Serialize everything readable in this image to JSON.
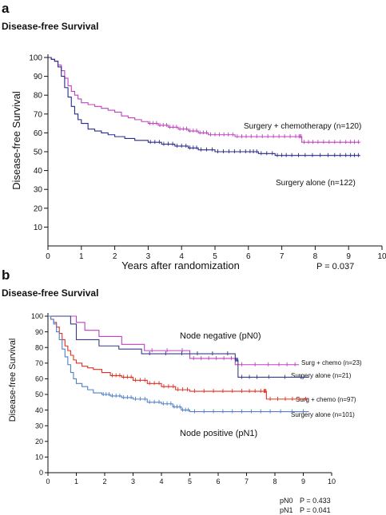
{
  "chart_data": [
    {
      "type": "line",
      "panel_label": "a",
      "title": "Disease-free Survival",
      "xlabel": "Years after randomization",
      "ylabel": "Disease-free Survival",
      "xlim": [
        0,
        10
      ],
      "ylim": [
        0,
        100
      ],
      "xticks": [
        "0",
        "1",
        "2",
        "3",
        "4",
        "5",
        "6",
        "7",
        "8",
        "9",
        "10"
      ],
      "yticks": [
        "10",
        "20",
        "30",
        "40",
        "50",
        "60",
        "70",
        "80",
        "90",
        "100"
      ],
      "annotation": "P = 0.037",
      "series": [
        {
          "name": "Surgery + chemotherapy (n=120)",
          "color": "#c040c0",
          "x": [
            0,
            0.1,
            0.2,
            0.3,
            0.4,
            0.5,
            0.6,
            0.7,
            0.8,
            0.9,
            1.0,
            1.2,
            1.4,
            1.6,
            1.8,
            2.0,
            2.2,
            2.4,
            2.6,
            2.8,
            3.0,
            3.3,
            3.6,
            3.9,
            4.2,
            4.5,
            4.8,
            5.2,
            5.6,
            6.0,
            6.5,
            7.0,
            7.5,
            7.6,
            8.0,
            8.5,
            9.0,
            9.35
          ],
          "y": [
            100,
            99,
            98,
            96,
            93,
            89,
            85,
            82,
            80,
            78,
            76,
            75,
            74,
            73,
            72,
            71,
            69,
            68,
            67,
            66,
            65,
            64,
            63,
            62,
            61,
            60,
            59,
            59,
            58,
            58,
            58,
            58,
            58,
            55,
            55,
            55,
            55,
            55
          ]
        },
        {
          "name": "Surgery alone (n=122)",
          "color": "#2a2a8a",
          "x": [
            0,
            0.1,
            0.2,
            0.3,
            0.4,
            0.5,
            0.6,
            0.7,
            0.8,
            0.9,
            1.0,
            1.2,
            1.4,
            1.6,
            1.8,
            2.0,
            2.3,
            2.6,
            3.0,
            3.4,
            3.8,
            4.2,
            4.5,
            5.0,
            5.5,
            6.0,
            6.3,
            6.8,
            7.2,
            7.8,
            8.5,
            9.0,
            9.35
          ],
          "y": [
            100,
            99,
            98,
            95,
            90,
            84,
            79,
            74,
            70,
            67,
            65,
            62,
            61,
            60,
            59,
            58,
            57,
            56,
            55,
            54,
            53,
            52,
            51,
            50,
            50,
            50,
            49,
            48,
            48,
            48,
            48,
            48,
            48
          ]
        }
      ],
      "legend": {
        "chemo_label": "Surgery + chemotherapy (n=120)",
        "alone_label": "Surgery alone (n=122)"
      }
    },
    {
      "type": "line",
      "panel_label": "b",
      "title": "Disease-free Survival",
      "ylabel": "Disease-free Survival",
      "xlim": [
        0,
        10
      ],
      "ylim": [
        0,
        100
      ],
      "xticks": [
        "0",
        "1",
        "2",
        "3",
        "4",
        "5",
        "6",
        "7",
        "8",
        "9",
        "10"
      ],
      "yticks": [
        "0",
        "10",
        "20",
        "30",
        "40",
        "50",
        "60",
        "70",
        "80",
        "90",
        "100"
      ],
      "group_labels": {
        "negative": "Node negative (pN0)",
        "positive": "Node positive (pN1)"
      },
      "annotations": [
        {
          "label": "pN0",
          "value": "P = 0.433"
        },
        {
          "label": "pN1",
          "value": "P = 0.041"
        }
      ],
      "series": [
        {
          "name": "Surg + chemo (n=23)",
          "color": "#c040c0",
          "x": [
            0,
            0.7,
            1.0,
            1.3,
            1.8,
            2.6,
            3.4,
            5.0,
            5.8,
            6.6,
            8.0,
            8.85
          ],
          "y": [
            100,
            100,
            96,
            91,
            87,
            82,
            78,
            73,
            73,
            69,
            69,
            69
          ]
        },
        {
          "name": "Surgery alone (n=21)",
          "color": "#3a3a8a",
          "x": [
            0,
            0.5,
            0.8,
            1.0,
            1.8,
            2.5,
            3.3,
            5.0,
            6.6,
            6.7,
            7.5,
            9.2
          ],
          "y": [
            100,
            100,
            95,
            85,
            81,
            79,
            76,
            76,
            72,
            61,
            61,
            61
          ]
        },
        {
          "name": "Surg + chemo (n=97)",
          "color": "#e03020",
          "x": [
            0,
            0.1,
            0.2,
            0.3,
            0.4,
            0.5,
            0.6,
            0.7,
            0.8,
            0.9,
            1.0,
            1.2,
            1.4,
            1.6,
            1.9,
            2.2,
            2.6,
            3.0,
            3.5,
            4.0,
            4.5,
            5.0,
            6.0,
            7.0,
            7.6,
            7.7,
            8.5,
            9.2
          ],
          "y": [
            100,
            98,
            96,
            93,
            89,
            85,
            81,
            78,
            75,
            72,
            70,
            68,
            67,
            66,
            64,
            62,
            61,
            59,
            57,
            55,
            53,
            52,
            52,
            52,
            52,
            47,
            47,
            47
          ]
        },
        {
          "name": "Surgery alone (n=101)",
          "color": "#5080c8",
          "x": [
            0,
            0.1,
            0.2,
            0.3,
            0.4,
            0.5,
            0.6,
            0.7,
            0.8,
            0.9,
            1.0,
            1.2,
            1.4,
            1.6,
            1.9,
            2.2,
            2.6,
            3.0,
            3.5,
            4.0,
            4.4,
            4.7,
            5.0,
            6.0,
            7.0,
            8.0,
            9.2
          ],
          "y": [
            100,
            98,
            95,
            90,
            85,
            79,
            74,
            69,
            64,
            60,
            57,
            55,
            53,
            51,
            50,
            49,
            48,
            47,
            45,
            44,
            42,
            40,
            39,
            39,
            39,
            39,
            39
          ]
        }
      ]
    }
  ]
}
